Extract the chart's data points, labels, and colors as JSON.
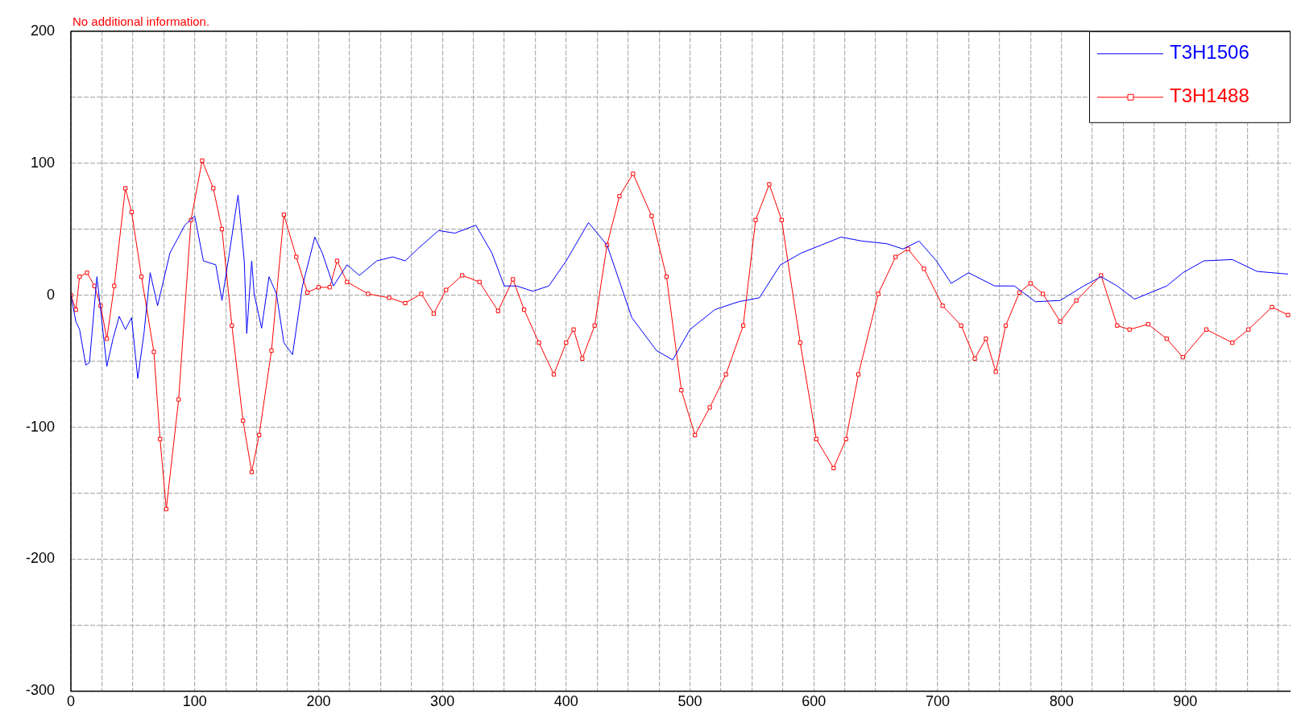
{
  "chart_data": {
    "type": "line",
    "annotations": [
      "No additional information."
    ],
    "xlim": [
      0,
      985
    ],
    "ylim": [
      -300,
      200
    ],
    "xticks": [
      0,
      {
        "value": 25,
        "label": null
      },
      {
        "value": 50,
        "label": null
      },
      {
        "value": 75,
        "label": null
      },
      100,
      {
        "value": 125,
        "label": null
      },
      {
        "value": 150,
        "label": null
      },
      {
        "value": 175,
        "label": null
      },
      200,
      {
        "value": 225,
        "label": null
      },
      {
        "value": 250,
        "label": null
      },
      {
        "value": 275,
        "label": null
      },
      300,
      {
        "value": 325,
        "label": null
      },
      {
        "value": 350,
        "label": null
      },
      {
        "value": 375,
        "label": null
      },
      400,
      {
        "value": 425,
        "label": null
      },
      {
        "value": 450,
        "label": null
      },
      {
        "value": 475,
        "label": null
      },
      500,
      {
        "value": 525,
        "label": null
      },
      {
        "value": 550,
        "label": null
      },
      {
        "value": 575,
        "label": null
      },
      600,
      {
        "value": 625,
        "label": null
      },
      {
        "value": 650,
        "label": null
      },
      {
        "value": 675,
        "label": null
      },
      700,
      {
        "value": 725,
        "label": null
      },
      {
        "value": 750,
        "label": null
      },
      {
        "value": 775,
        "label": null
      },
      800,
      {
        "value": 825,
        "label": null
      },
      {
        "value": 850,
        "label": null
      },
      {
        "value": 875,
        "label": null
      },
      900,
      {
        "value": 925,
        "label": null
      },
      {
        "value": 950,
        "label": null
      },
      {
        "value": 975,
        "label": null
      }
    ],
    "yticks": [
      -300,
      {
        "value": -250,
        "label": null
      },
      -200,
      {
        "value": -150,
        "label": null
      },
      -100,
      {
        "value": -50,
        "label": null
      },
      0,
      {
        "value": 50,
        "label": null
      },
      100,
      {
        "value": 150,
        "label": null
      },
      200
    ],
    "grid": true,
    "legend": "top right",
    "line_style": "solid",
    "series": [
      {
        "name": "T3H1506",
        "color": "#0000ff",
        "marker": "none",
        "x": [
          0,
          4,
          7,
          12,
          15,
          21,
          24,
          29,
          34,
          39,
          44,
          49,
          54,
          59,
          64,
          70,
          80,
          92,
          100,
          107,
          117,
          122,
          128,
          135,
          140,
          142,
          146,
          148,
          154,
          160,
          166,
          172,
          179,
          187,
          197,
          203,
          212,
          223,
          233,
          247,
          260,
          270,
          280,
          297,
          310,
          327,
          340,
          350,
          360,
          373,
          386,
          400,
          418,
          433,
          453,
          473,
          486,
          500,
          520,
          539,
          556,
          573,
          590,
          606,
          622,
          639,
          659,
          672,
          685,
          699,
          711,
          725,
          746,
          762,
          779,
          799,
          818,
          832,
          845,
          859,
          885,
          898,
          915,
          938,
          958,
          983
        ],
        "values": [
          0,
          -20,
          -26,
          -53,
          -51,
          14,
          -11,
          -54,
          -33,
          -16,
          -26,
          -17,
          -63,
          -29,
          17,
          -8,
          32,
          53,
          60,
          26,
          23,
          -4,
          32,
          76,
          26,
          -29,
          26,
          1,
          -25,
          14,
          1,
          -36,
          -45,
          7,
          44,
          32,
          7,
          23,
          15,
          26,
          29,
          26,
          35,
          49,
          47,
          53,
          32,
          7,
          7,
          3,
          7,
          26,
          55,
          38,
          -17,
          -42,
          -49,
          -26,
          -11,
          -5,
          -2,
          23,
          32,
          38,
          44,
          41,
          39,
          35,
          41,
          26,
          9,
          17,
          7,
          7,
          -5,
          -4,
          7,
          14,
          7,
          -3,
          7,
          17,
          26,
          27,
          18,
          16
        ]
      },
      {
        "name": "T3H1488",
        "color": "#ff0000",
        "marker": "square",
        "x": [
          0,
          4,
          7,
          13,
          19,
          24,
          29,
          35,
          44,
          49,
          57,
          67,
          72,
          77,
          87,
          97,
          106,
          115,
          122,
          130,
          139,
          146,
          152,
          162,
          172,
          182,
          191,
          200,
          209,
          215,
          223,
          240,
          257,
          270,
          283,
          293,
          303,
          316,
          330,
          345,
          357,
          366,
          378,
          390,
          400,
          406,
          413,
          423,
          433,
          443,
          454,
          469,
          481,
          493,
          504,
          516,
          529,
          543,
          553,
          564,
          574,
          589,
          602,
          616,
          626,
          636,
          652,
          666,
          676,
          689,
          704,
          719,
          730,
          739,
          747,
          755,
          766,
          775,
          785,
          799,
          812,
          832,
          845,
          855,
          870,
          885,
          898,
          917,
          938,
          951,
          970,
          983
        ],
        "values": [
          0,
          -11,
          14,
          17,
          7,
          -8,
          -33,
          7,
          81,
          63,
          14,
          -43,
          -109,
          -162,
          -79,
          57,
          102,
          81,
          50,
          -23,
          -95,
          -134,
          -106,
          -42,
          61,
          29,
          2,
          6,
          6,
          26,
          10,
          1,
          -2,
          -6,
          1,
          -14,
          4,
          15,
          10,
          -12,
          12,
          -11,
          -36,
          -60,
          -36,
          -26,
          -48,
          -23,
          38,
          75,
          92,
          60,
          14,
          -72,
          -106,
          -85,
          -60,
          -23,
          57,
          84,
          57,
          -36,
          -109,
          -131,
          -109,
          -60,
          1,
          29,
          35,
          20,
          -8,
          -23,
          -48,
          -33,
          -58,
          -23,
          2,
          9,
          1,
          -20,
          -4,
          15,
          -23,
          -26,
          -22,
          -33,
          -47,
          -26,
          -36,
          -26,
          -9,
          -15
        ]
      }
    ]
  }
}
